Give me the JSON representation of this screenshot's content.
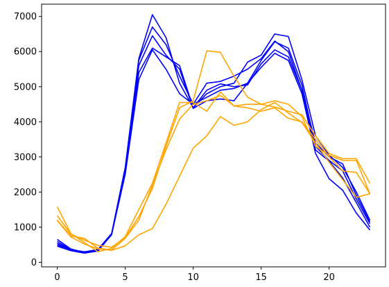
{
  "chart_data": {
    "type": "line",
    "title": "",
    "xlabel": "",
    "ylabel": "",
    "xlim": [
      -1.15,
      24.15
    ],
    "ylim": [
      -130,
      7350
    ],
    "grid": false,
    "legend": "none",
    "x_ticks": [
      0,
      5,
      10,
      15,
      20
    ],
    "y_ticks": [
      0,
      1000,
      2000,
      3000,
      4000,
      5000,
      6000,
      7000
    ],
    "x": [
      0,
      1,
      2,
      3,
      4,
      5,
      6,
      7,
      8,
      9,
      10,
      11,
      12,
      13,
      14,
      15,
      16,
      17,
      18,
      19,
      20,
      21,
      22,
      23
    ],
    "series": [
      {
        "color": "#0000ff",
        "values": [
          650,
          380,
          280,
          370,
          820,
          2700,
          5800,
          7050,
          6400,
          5100,
          4400,
          4800,
          5000,
          5100,
          5700,
          5900,
          6500,
          6430,
          5200,
          3600,
          3050,
          2700,
          2000,
          1200
        ]
      },
      {
        "color": "#0000ff",
        "values": [
          590,
          360,
          300,
          360,
          800,
          2650,
          5750,
          6700,
          6200,
          5300,
          4500,
          5100,
          5150,
          5300,
          5500,
          5800,
          6300,
          6000,
          4900,
          3400,
          3000,
          2800,
          1900,
          1150
        ]
      },
      {
        "color": "#0000ff",
        "values": [
          540,
          350,
          290,
          350,
          780,
          2600,
          5600,
          6450,
          5900,
          5500,
          4380,
          4600,
          4650,
          4600,
          5100,
          5750,
          6280,
          6100,
          5050,
          3300,
          2900,
          2600,
          1800,
          1100
        ]
      },
      {
        "color": "#0000ff",
        "values": [
          500,
          340,
          270,
          330,
          800,
          2550,
          5400,
          6100,
          5850,
          5600,
          4400,
          4900,
          5080,
          5000,
          5050,
          5650,
          6050,
          5850,
          4900,
          3200,
          2880,
          2400,
          1700,
          1000
        ]
      },
      {
        "color": "#0000ff",
        "values": [
          460,
          330,
          260,
          320,
          790,
          2500,
          5200,
          6050,
          5500,
          4800,
          4500,
          4700,
          4900,
          4950,
          5100,
          5550,
          5950,
          5750,
          4800,
          3100,
          2380,
          2050,
          1400,
          920
        ]
      },
      {
        "color": "#ffa500",
        "values": [
          1580,
          820,
          560,
          300,
          400,
          730,
          1500,
          2250,
          3400,
          4550,
          4550,
          4300,
          4850,
          4450,
          4500,
          4500,
          4420,
          4300,
          4200,
          3600,
          3100,
          2950,
          2950,
          2250
        ]
      },
      {
        "color": "#ffa500",
        "values": [
          1330,
          800,
          630,
          480,
          430,
          700,
          1300,
          2100,
          3300,
          4400,
          4600,
          6020,
          5980,
          5300,
          4700,
          4500,
          4600,
          4500,
          4150,
          3300,
          3050,
          2900,
          2900,
          1950
        ]
      },
      {
        "color": "#ffa500",
        "values": [
          1200,
          750,
          680,
          400,
          350,
          680,
          1200,
          2200,
          3200,
          4080,
          4500,
          4600,
          4750,
          4450,
          4400,
          4300,
          4400,
          4100,
          4000,
          3500,
          3000,
          2600,
          2560,
          1950
        ]
      },
      {
        "color": "#ffa500",
        "values": [
          1190,
          720,
          520,
          380,
          340,
          470,
          780,
          960,
          1650,
          2450,
          3250,
          3600,
          4150,
          3900,
          4000,
          4350,
          4550,
          4250,
          3980,
          3400,
          2850,
          2350,
          1850,
          1950
        ]
      }
    ]
  }
}
